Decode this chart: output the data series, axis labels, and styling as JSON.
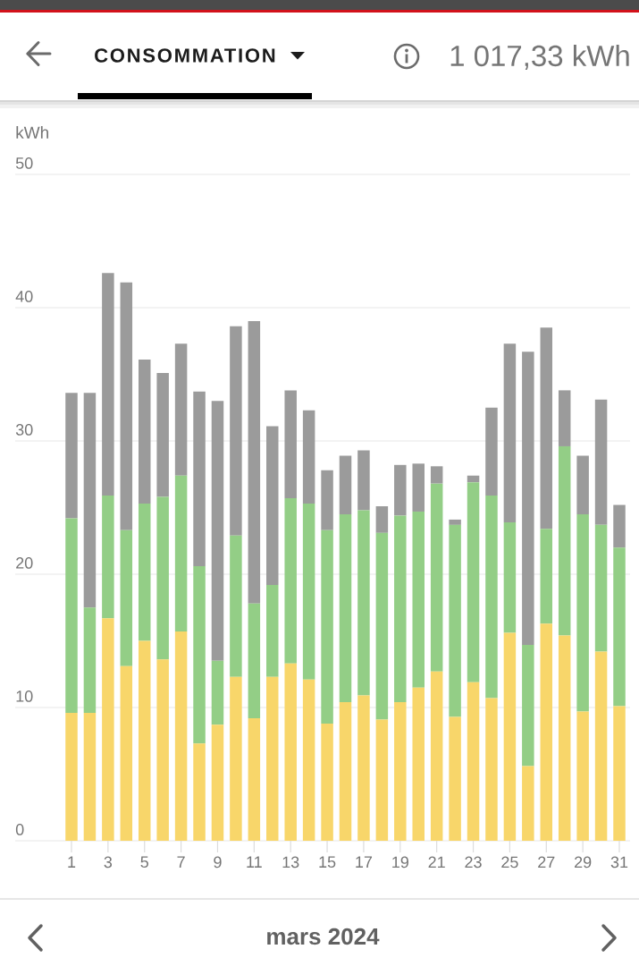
{
  "chart_data": {
    "type": "bar",
    "stacked": true,
    "title": "CONSOMMATION",
    "annotations": [
      "1 017,33 kWh"
    ],
    "ylabel": "kWh",
    "xlabel": "mars 2024",
    "categories": [
      "1",
      null,
      "3",
      null,
      "5",
      null,
      "7",
      null,
      "9",
      null,
      "11",
      null,
      "13",
      null,
      "15",
      null,
      "17",
      null,
      "19",
      null,
      "21",
      null,
      "23",
      null,
      "25",
      null,
      "27",
      null,
      "29",
      null,
      "31"
    ],
    "ylim": [
      0,
      50
    ],
    "yticks": [
      0,
      10,
      20,
      30,
      40,
      50
    ],
    "grid": "y",
    "series": [
      {
        "color": "#f8d66a",
        "values": [
          9.6,
          9.6,
          16.7,
          13.1,
          15.0,
          13.6,
          15.7,
          7.3,
          8.7,
          12.3,
          9.2,
          12.3,
          13.3,
          12.1,
          8.8,
          10.4,
          10.9,
          9.1,
          10.4,
          11.5,
          12.7,
          9.3,
          11.9,
          10.7,
          15.6,
          5.6,
          16.3,
          15.4,
          9.7,
          14.2,
          10.1
        ]
      },
      {
        "color": "#93ce86",
        "values": [
          14.6,
          7.9,
          9.2,
          10.2,
          10.3,
          12.2,
          11.7,
          13.3,
          4.8,
          10.6,
          8.6,
          6.9,
          12.4,
          13.2,
          14.5,
          14.1,
          13.9,
          14.0,
          14.0,
          13.2,
          14.1,
          14.4,
          15.0,
          15.2,
          8.3,
          9.1,
          7.1,
          14.2,
          14.8,
          9.5,
          11.9
        ]
      },
      {
        "color": "#9b9b9b",
        "values": [
          9.4,
          16.1,
          16.7,
          18.6,
          10.8,
          9.3,
          9.9,
          13.1,
          19.5,
          15.7,
          21.2,
          11.9,
          8.1,
          7.0,
          4.5,
          4.4,
          4.5,
          2.0,
          3.8,
          3.6,
          1.3,
          0.4,
          0.5,
          6.6,
          13.4,
          22.0,
          15.1,
          4.2,
          4.4,
          9.4,
          3.2
        ]
      }
    ]
  }
}
